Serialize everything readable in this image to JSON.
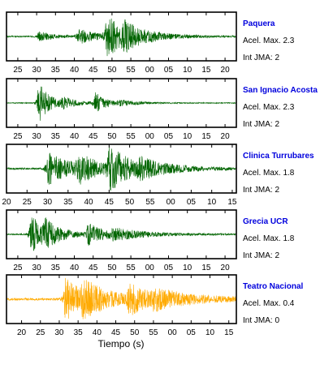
{
  "chart_data": [
    {
      "type": "line",
      "station": "Paquera",
      "acel_label": "Acel. Max. 2.3",
      "int_label": "Int JMA: 2",
      "color": "#006400",
      "station_color": "#0000dd",
      "tick_labels": [
        "25",
        "30",
        "35",
        "40",
        "45",
        "50",
        "55",
        "00",
        "05",
        "10",
        "15",
        "20"
      ],
      "x_range_seconds": [
        22,
        83
      ],
      "tick_start_seconds": 25,
      "events": [
        {
          "t": 30.5,
          "amp": 0.22,
          "decay": 4
        },
        {
          "t": 41.0,
          "amp": 0.35,
          "decay": 5
        },
        {
          "t": 48.5,
          "amp": 0.95,
          "decay": 5
        },
        {
          "t": 53.0,
          "amp": 0.35,
          "decay": 8
        }
      ],
      "background": 0.03
    },
    {
      "type": "line",
      "station": "San Ignacio Acosta",
      "acel_label": "Acel. Max. 2.3",
      "int_label": "Int JMA: 2",
      "color": "#006400",
      "station_color": "#0000dd",
      "tick_labels": [
        "25",
        "30",
        "35",
        "40",
        "45",
        "50",
        "55",
        "00",
        "05",
        "10",
        "15",
        "20"
      ],
      "x_range_seconds": [
        22,
        83
      ],
      "tick_start_seconds": 25,
      "events": [
        {
          "t": 30.5,
          "amp": 0.95,
          "decay": 3
        },
        {
          "t": 37.0,
          "amp": 0.2,
          "decay": 4
        },
        {
          "t": 45.5,
          "amp": 0.45,
          "decay": 3
        },
        {
          "t": 52.0,
          "amp": 0.1,
          "decay": 6
        }
      ],
      "background": 0.02
    },
    {
      "type": "line",
      "station": "Clinica Turrubares",
      "acel_label": "Acel. Max. 1.8",
      "int_label": "Int JMA: 2",
      "color": "#006400",
      "station_color": "#0000dd",
      "tick_labels": [
        "20",
        "25",
        "30",
        "35",
        "40",
        "45",
        "50",
        "55",
        "00",
        "05",
        "10",
        "15"
      ],
      "x_range_seconds": [
        20,
        76
      ],
      "tick_start_seconds": 20,
      "events": [
        {
          "t": 30.0,
          "amp": 0.75,
          "decay": 6
        },
        {
          "t": 37.5,
          "amp": 0.55,
          "decay": 5
        },
        {
          "t": 45.0,
          "amp": 0.95,
          "decay": 5
        },
        {
          "t": 52.0,
          "amp": 0.3,
          "decay": 10
        }
      ],
      "background": 0.04
    },
    {
      "type": "line",
      "station": "Grecia UCR",
      "acel_label": "Acel. Max. 1.8",
      "int_label": "Int JMA: 2",
      "color": "#006400",
      "station_color": "#0000dd",
      "tick_labels": [
        "25",
        "30",
        "35",
        "40",
        "45",
        "50",
        "55",
        "00",
        "05",
        "10",
        "15",
        "20"
      ],
      "x_range_seconds": [
        22,
        83
      ],
      "tick_start_seconds": 25,
      "events": [
        {
          "t": 28.5,
          "amp": 0.95,
          "decay": 3
        },
        {
          "t": 32.0,
          "amp": 0.5,
          "decay": 5
        },
        {
          "t": 43.5,
          "amp": 0.45,
          "decay": 5
        },
        {
          "t": 50.0,
          "amp": 0.2,
          "decay": 10
        }
      ],
      "background": 0.03
    },
    {
      "type": "line",
      "station": "Teatro Nacional",
      "acel_label": "Acel. Max. 0.4",
      "int_label": "Int JMA: 0",
      "color": "#ffaa00",
      "station_color": "#0000dd",
      "tick_labels": [
        "20",
        "25",
        "30",
        "35",
        "40",
        "45",
        "50",
        "55",
        "00",
        "05",
        "10",
        "15"
      ],
      "x_range_seconds": [
        16,
        77
      ],
      "tick_start_seconds": 20,
      "events": [
        {
          "t": 31.5,
          "amp": 0.95,
          "decay": 6
        },
        {
          "t": 36.0,
          "amp": 0.55,
          "decay": 8
        },
        {
          "t": 48.5,
          "amp": 0.6,
          "decay": 6
        },
        {
          "t": 55.0,
          "amp": 0.3,
          "decay": 14
        }
      ],
      "background": 0.05
    }
  ],
  "xlabel": "Tiempo (s)"
}
